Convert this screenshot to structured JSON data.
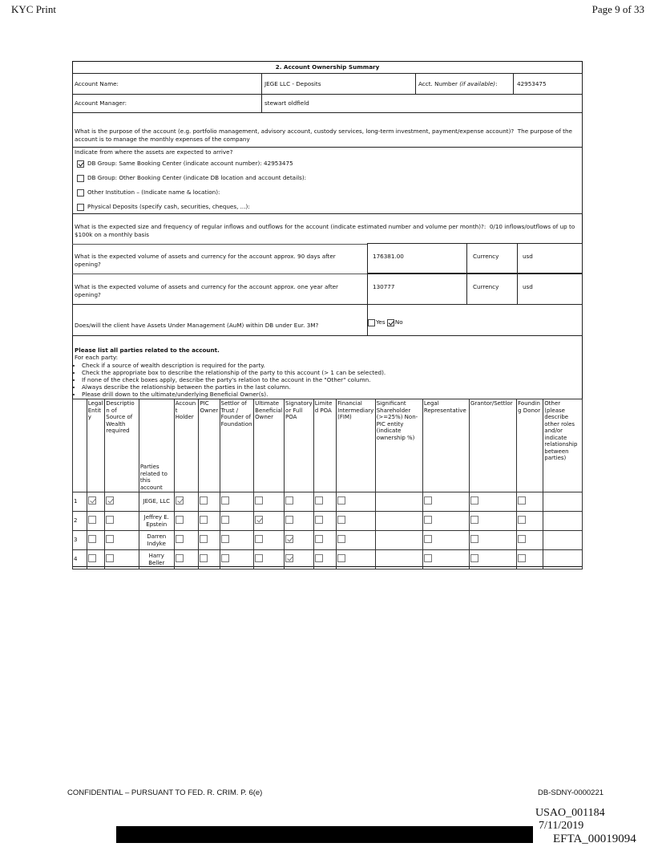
{
  "header": {
    "title": "KYC Print",
    "page": "Page 9 of 33"
  },
  "section": {
    "title": "2. Account Ownership Summary"
  },
  "account": {
    "name_label": "Account Name:",
    "name_value": "JEGE LLC - Deposits",
    "number_label": "Acct. Number ",
    "number_hint": "(if available)",
    "number_colon": ":",
    "number_value": "42953475",
    "manager_label": "Account Manager:",
    "manager_value": "stewart oldfield"
  },
  "purpose": {
    "question": "What is the purpose of the account (e.g. portfolio management, advisory account, custody services, long-term investment, payment/expense account)?",
    "answer": "The purpose of the account is to manage the monthly expenses of the company"
  },
  "assets_origin": {
    "question": "Indicate from where the assets are expected to arrive?",
    "options": [
      {
        "label": "DB Group: Same Booking Center (indicate account number):  42953475",
        "checked": true
      },
      {
        "label": "DB Group: Other Booking Center (indicate DB location and account details):",
        "checked": false
      },
      {
        "label": "Other Institution – (Indicate name & location):",
        "checked": false
      },
      {
        "label": "Physical Deposits (specify cash, securities, cheques, ...):",
        "checked": false
      }
    ]
  },
  "flows": {
    "question": "What is the expected size and frequency of regular inflows and outflows for the account (indicate estimated number and volume per month)?:",
    "answer": "0/10 inflows/outflows of up to $100k on a monthly basis"
  },
  "volume_90": {
    "question": "What is the expected volume of assets and currency for the account approx. 90 days after opening?",
    "value": "176381.00",
    "currency_label": "Currency",
    "currency": "usd"
  },
  "volume_1y": {
    "question": "What is the expected volume of assets and currency for the account approx. one year after opening?",
    "value": "130777",
    "currency_label": "Currency",
    "currency": "usd"
  },
  "aum": {
    "question": "Does/will the client have Assets Under Management (AuM) within DB under Eur. 3M?",
    "yes_label": "Yes",
    "no_label": "No",
    "yes": false,
    "no": true
  },
  "parties": {
    "heading": "Please list all parties related to the account.",
    "intro": "For each party:",
    "bullets": [
      "Check if a source of wealth description is required for the party.",
      "Check the appropriate box to describe the relationship of the party to this account (> 1 can be selected).",
      "If none of the check boxes apply, describe the party's relation to the account in the \"Other\" column.",
      "Always describe the relationship between the parties in the last column.",
      "Please drill down to the ultimate/underlying Beneficial Owner(s)."
    ],
    "columns": [
      "",
      "Legal Entity",
      "Description of Source of Wealth required",
      "Parties related to this account",
      "Account Holder",
      "PIC Owner",
      "Settlor of Trust / Founder of Foundation",
      "Ultimate Beneficial Owner",
      "Signatory or Full POA",
      "Limited POA",
      "Financial Intermediary (FIM)",
      "Significant Shareholder (>=25%) Non-PIC entity (indicate ownership %)",
      "Legal Representative",
      "Grantor/Settlor",
      "Founding Donor",
      "Other (please describe other roles and/or indicate relationship between parties)"
    ],
    "rows": [
      {
        "num": "1",
        "name": "JEGE, LLC",
        "checks": [
          true,
          true,
          true,
          false,
          false,
          false,
          false,
          false,
          false,
          false,
          false,
          false
        ]
      },
      {
        "num": "2",
        "name": "Jeffrey E. Epstein",
        "checks": [
          false,
          false,
          false,
          false,
          false,
          true,
          false,
          false,
          false,
          false,
          false,
          false
        ]
      },
      {
        "num": "3",
        "name": "Darren Indyke",
        "checks": [
          false,
          false,
          false,
          false,
          false,
          false,
          true,
          false,
          false,
          false,
          false,
          false
        ]
      },
      {
        "num": "4",
        "name": "Harry Beller",
        "checks": [
          false,
          false,
          false,
          false,
          false,
          false,
          true,
          false,
          false,
          false,
          false,
          false
        ]
      }
    ]
  },
  "footer": {
    "confidential": "CONFIDENTIAL – PURSUANT TO FED. R. CRIM. P. 6(e)",
    "bates": "DB-SDNY-0000221",
    "usao": "USAO_001184",
    "date": "7/11/2019",
    "efta": "EFTA_00019094"
  }
}
